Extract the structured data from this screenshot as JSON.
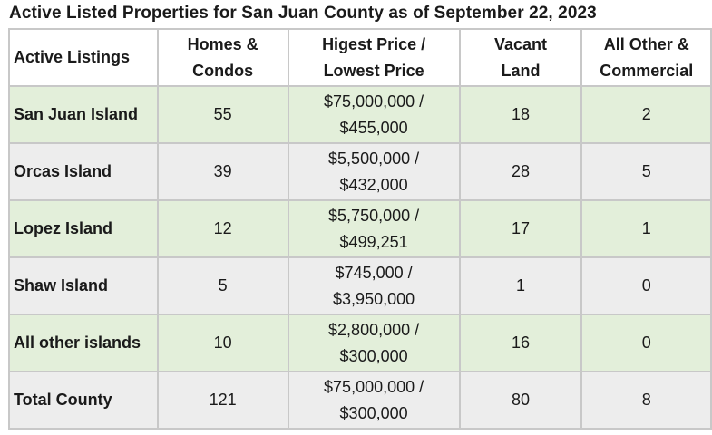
{
  "title": "Active Listed Properties for San Juan County as of September 22, 2023",
  "headers": {
    "col1": "Active Listings",
    "col2": [
      "Homes &",
      "Condos"
    ],
    "col3": [
      "Higest Price /",
      "Lowest Price"
    ],
    "col4": [
      "Vacant",
      "Land"
    ],
    "col5": [
      "All Other &",
      "Commercial"
    ]
  },
  "rows": [
    {
      "name": "San Juan Island",
      "homes": "55",
      "price_high": "$75,000,000 /",
      "price_low": "$455,000",
      "land": "18",
      "other": "2"
    },
    {
      "name": "Orcas Island",
      "homes": "39",
      "price_high": "$5,500,000 /",
      "price_low": "$432,000",
      "land": "28",
      "other": "5"
    },
    {
      "name": "Lopez Island",
      "homes": "12",
      "price_high": "$5,750,000 /",
      "price_low": "$499,251",
      "land": "17",
      "other": "1"
    },
    {
      "name": "Shaw Island",
      "homes": "5",
      "price_high": "$745,000 /",
      "price_low": "$3,950,000",
      "land": "1",
      "other": "0"
    },
    {
      "name": "All other islands",
      "homes": "10",
      "price_high": "$2,800,000 /",
      "price_low": "$300,000",
      "land": "16",
      "other": "0"
    },
    {
      "name": "Total County",
      "homes": "121",
      "price_high": "$75,000,000 /",
      "price_low": "$300,000",
      "land": "80",
      "other": "8"
    }
  ],
  "colors": {
    "row_green": "#e3efda",
    "row_gray": "#ededed",
    "border": "#c8c8c8"
  }
}
